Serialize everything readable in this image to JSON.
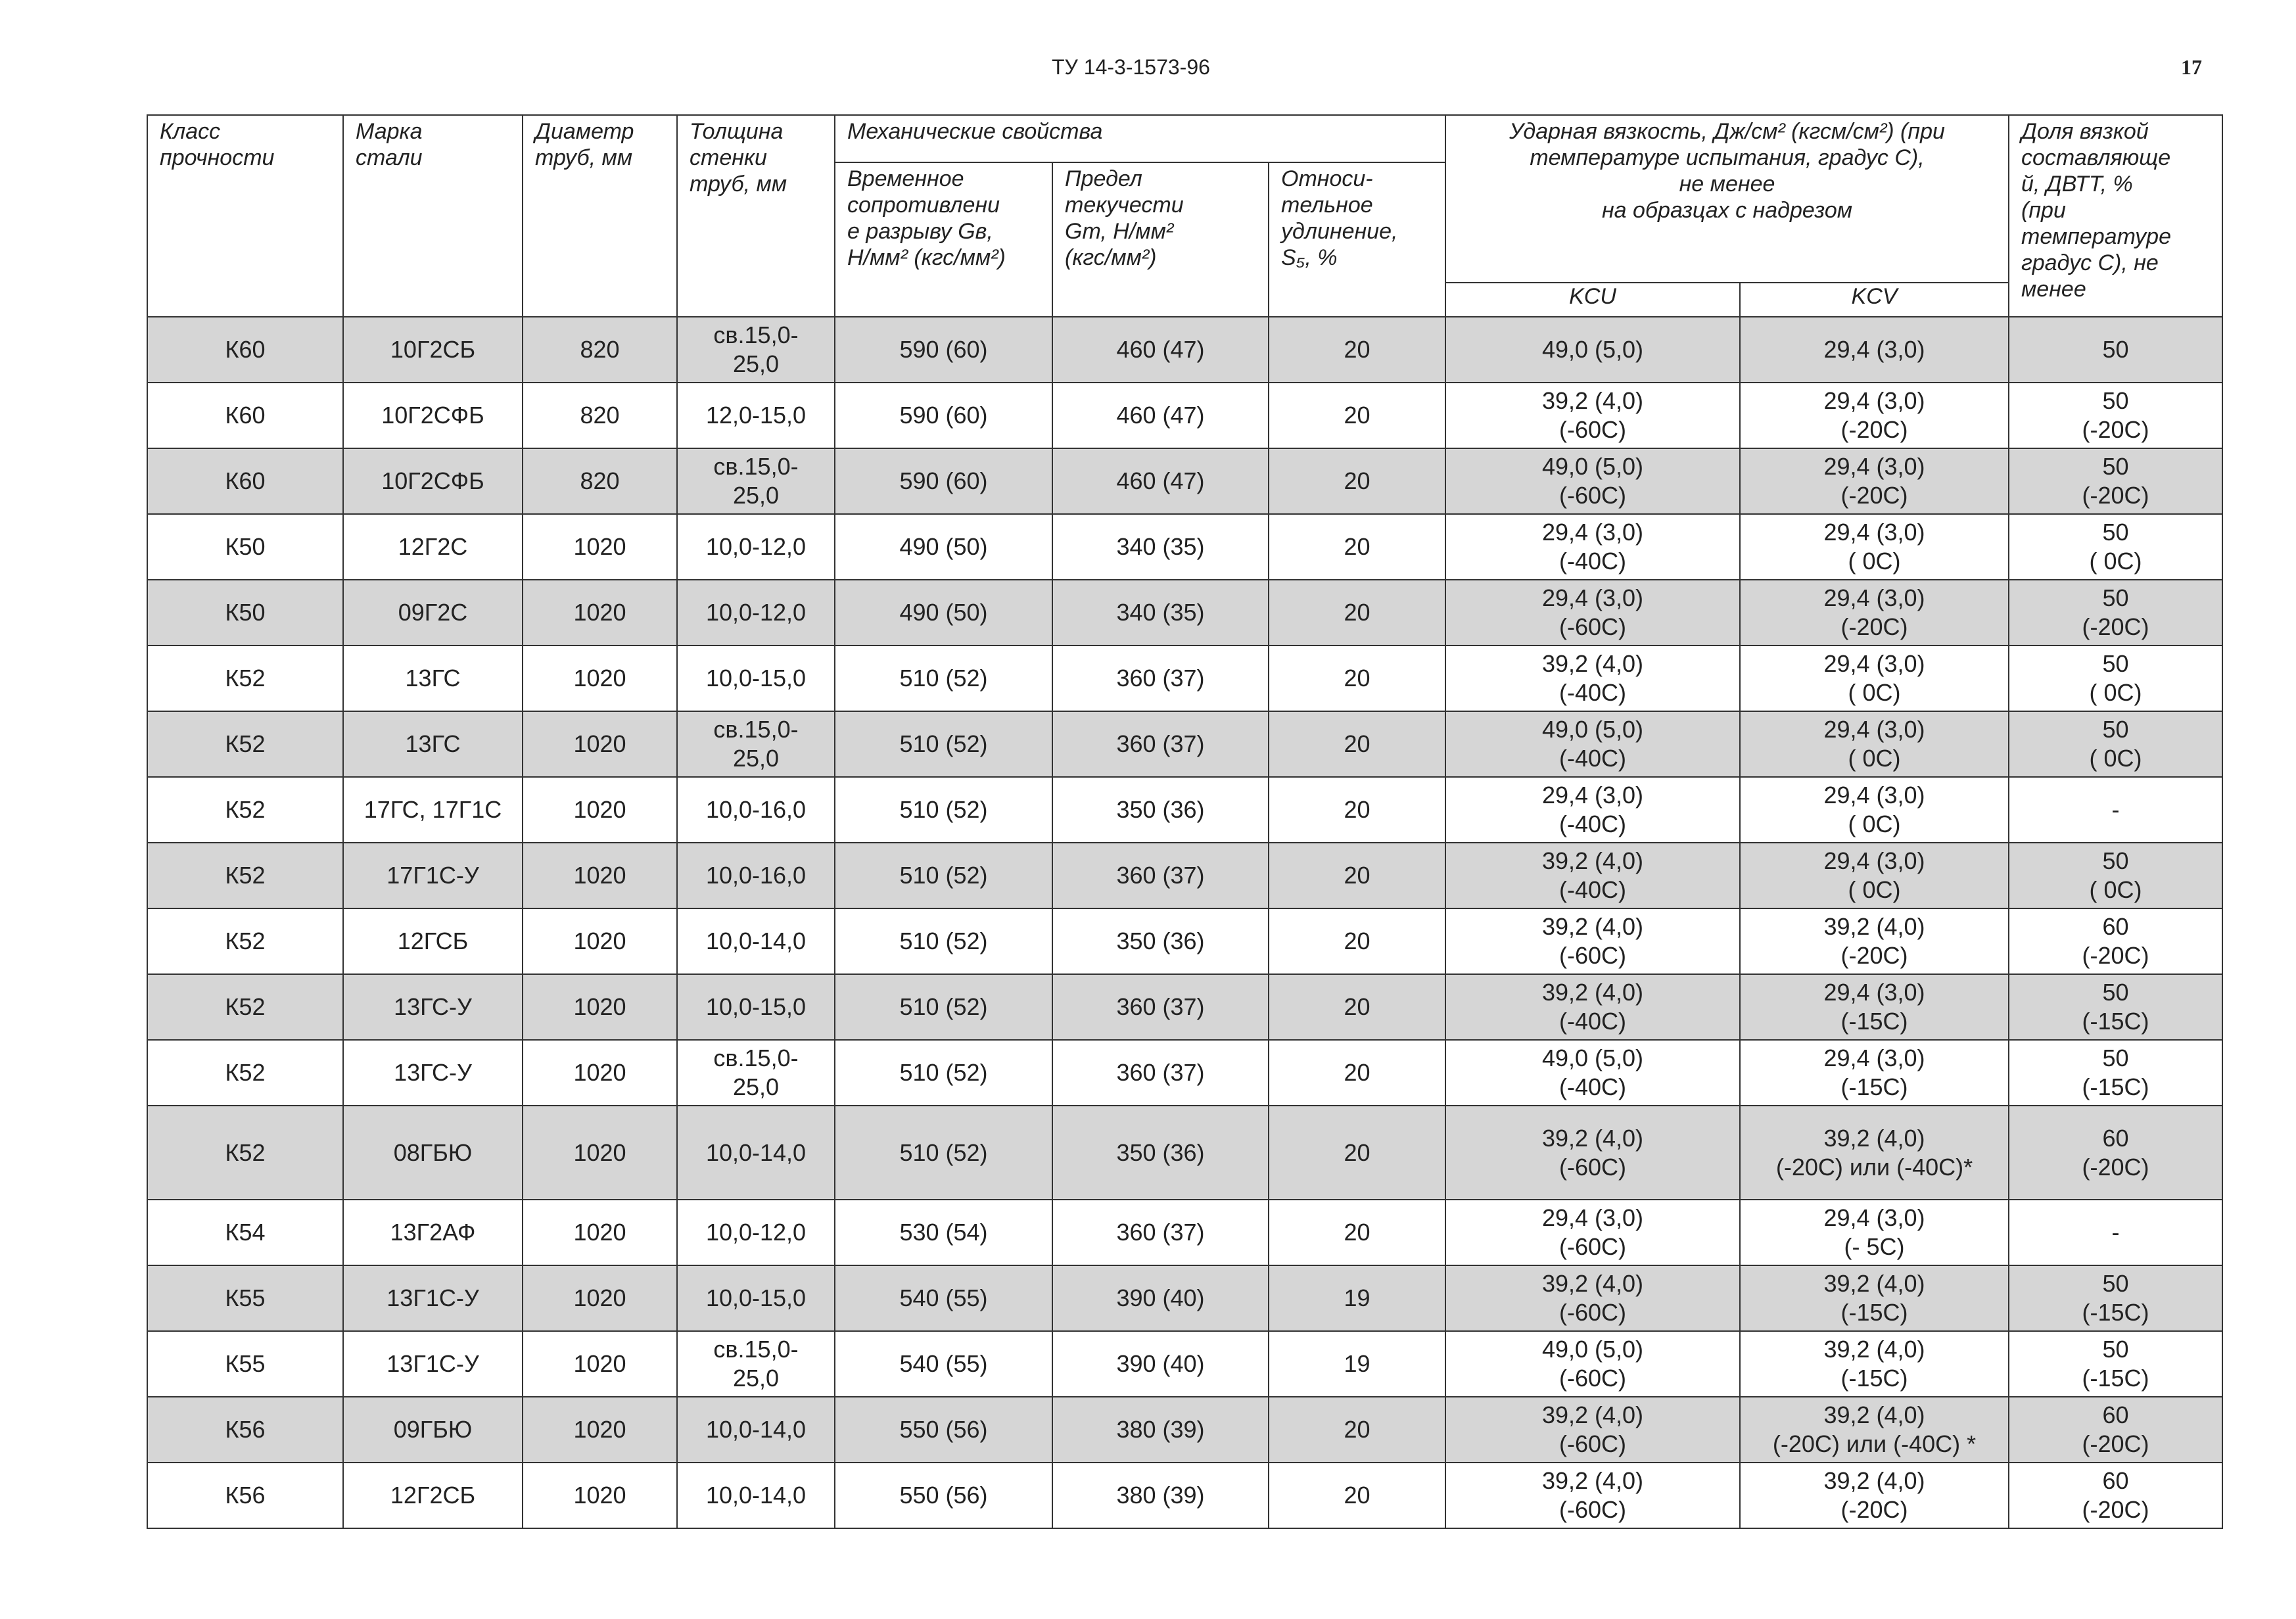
{
  "header": {
    "doc_code": "ТУ 14-3-1573-96",
    "page_number": "17"
  },
  "table": {
    "header_cells": [
      [
        "Класс",
        "прочности"
      ],
      [
        "Марка",
        "стали"
      ],
      [
        "Диаметр",
        "труб, мм"
      ],
      [
        "Толщина",
        "стенки",
        "труб, мм"
      ],
      [
        "Механические свойства"
      ],
      [
        "Временное",
        "сопротивлени",
        "е разрыву Gв,",
        "Н/мм² (кгс/мм²)"
      ],
      [
        "Предел",
        "текучести",
        "Gт, Н/мм²",
        "(кгс/мм²)"
      ],
      [
        "Относи-",
        "тельное",
        "удлинение,",
        "S₅, %"
      ],
      [
        "Ударная вязкость, Дж/см² (кгсм/см²) (при",
        "температуре испытания, градус С),",
        "не менее",
        "на образцах с надрезом"
      ],
      [
        "KCU"
      ],
      [
        "KCV"
      ],
      [
        "Доля вязкой",
        "составляюще",
        "й, ДВТТ, %",
        "(при",
        "температуре",
        "градус С), не",
        "менее"
      ]
    ],
    "rows": [
      [
        "К60",
        "10Г2СБ",
        "820",
        [
          "св.15,0-",
          "25,0"
        ],
        "590 (60)",
        "460 (47)",
        "20",
        "49,0 (5,0)",
        "29,4 (3,0)",
        "50"
      ],
      [
        "К60",
        "10Г2СФБ",
        "820",
        "12,0-15,0",
        "590 (60)",
        "460 (47)",
        "20",
        [
          "39,2 (4,0)",
          "(-60С)"
        ],
        [
          "29,4 (3,0)",
          "(-20С)"
        ],
        [
          "50",
          "(-20С)"
        ]
      ],
      [
        "К60",
        "10Г2СФБ",
        "820",
        [
          "св.15,0-",
          "25,0"
        ],
        "590 (60)",
        "460 (47)",
        "20",
        [
          "49,0 (5,0)",
          "(-60С)"
        ],
        [
          "29,4 (3,0)",
          "(-20С)"
        ],
        [
          "50",
          "(-20С)"
        ]
      ],
      [
        "К50",
        "12Г2С",
        "1020",
        "10,0-12,0",
        "490 (50)",
        "340 (35)",
        "20",
        [
          "29,4 (3,0)",
          "(-40С)"
        ],
        [
          "29,4 (3,0)",
          "( 0С)"
        ],
        [
          "50",
          "( 0С)"
        ]
      ],
      [
        "К50",
        "09Г2С",
        "1020",
        "10,0-12,0",
        "490 (50)",
        "340 (35)",
        "20",
        [
          "29,4 (3,0)",
          "(-60С)"
        ],
        [
          "29,4 (3,0)",
          "(-20С)"
        ],
        [
          "50",
          "(-20С)"
        ]
      ],
      [
        "К52",
        "13ГС",
        "1020",
        "10,0-15,0",
        "510 (52)",
        "360 (37)",
        "20",
        [
          "39,2 (4,0)",
          "(-40С)"
        ],
        [
          "29,4 (3,0)",
          "( 0С)"
        ],
        [
          "50",
          "( 0С)"
        ]
      ],
      [
        "К52",
        "13ГС",
        "1020",
        [
          "св.15,0-",
          "25,0"
        ],
        "510 (52)",
        "360 (37)",
        "20",
        [
          "49,0 (5,0)",
          "(-40С)"
        ],
        [
          "29,4 (3,0)",
          "( 0С)"
        ],
        [
          "50",
          "( 0С)"
        ]
      ],
      [
        "К52",
        "17ГС, 17Г1С",
        "1020",
        "10,0-16,0",
        "510 (52)",
        "350 (36)",
        "20",
        [
          "29,4 (3,0)",
          "(-40С)"
        ],
        [
          "29,4 (3,0)",
          "( 0С)"
        ],
        "-"
      ],
      [
        "К52",
        "17Г1С-У",
        "1020",
        "10,0-16,0",
        "510 (52)",
        "360 (37)",
        "20",
        [
          "39,2 (4,0)",
          "(-40С)"
        ],
        [
          "29,4 (3,0)",
          "( 0С)"
        ],
        [
          "50",
          "( 0С)"
        ]
      ],
      [
        "К52",
        "12ГСБ",
        "1020",
        "10,0-14,0",
        "510 (52)",
        "350 (36)",
        "20",
        [
          "39,2 (4,0)",
          "(-60С)"
        ],
        [
          "39,2 (4,0)",
          "(-20С)"
        ],
        [
          "60",
          "(-20С)"
        ]
      ],
      [
        "К52",
        "13ГС-У",
        "1020",
        "10,0-15,0",
        "510 (52)",
        "360 (37)",
        "20",
        [
          "39,2 (4,0)",
          "(-40С)"
        ],
        [
          "29,4 (3,0)",
          "(-15С)"
        ],
        [
          "50",
          "(-15С)"
        ]
      ],
      [
        "К52",
        "13ГС-У",
        "1020",
        [
          "св.15,0-",
          "25,0"
        ],
        "510 (52)",
        "360 (37)",
        "20",
        [
          "49,0 (5,0)",
          "(-40С)"
        ],
        [
          "29,4 (3,0)",
          "(-15С)"
        ],
        [
          "50",
          "(-15С)"
        ]
      ],
      [
        "К52",
        "08ГБЮ",
        "1020",
        "10,0-14,0",
        "510 (52)",
        "350 (36)",
        "20",
        [
          "39,2 (4,0)",
          "(-60С)"
        ],
        [
          "39,2 (4,0)",
          "(-20С) или (-40С)*"
        ],
        [
          "60",
          "(-20С)"
        ]
      ],
      [
        "К54",
        "13Г2АФ",
        "1020",
        "10,0-12,0",
        "530 (54)",
        "360 (37)",
        "20",
        [
          "29,4 (3,0)",
          "(-60С)"
        ],
        [
          "29,4 (3,0)",
          "(- 5С)"
        ],
        "-"
      ],
      [
        "К55",
        "13Г1С-У",
        "1020",
        "10,0-15,0",
        "540 (55)",
        "390 (40)",
        "19",
        [
          "39,2 (4,0)",
          "(-60С)"
        ],
        [
          "39,2 (4,0)",
          "(-15С)"
        ],
        [
          "50",
          "(-15С)"
        ]
      ],
      [
        "К55",
        "13Г1С-У",
        "1020",
        [
          "св.15,0-",
          "25,0"
        ],
        "540 (55)",
        "390 (40)",
        "19",
        [
          "49,0 (5,0)",
          "(-60С)"
        ],
        [
          "39,2 (4,0)",
          "(-15С)"
        ],
        [
          "50",
          "(-15С)"
        ]
      ],
      [
        "К56",
        "09ГБЮ",
        "1020",
        "10,0-14,0",
        "550 (56)",
        "380 (39)",
        "20",
        [
          "39,2 (4,0)",
          "(-60С)"
        ],
        [
          "39,2 (4,0)",
          "(-20С) или (-40С) *"
        ],
        [
          "60",
          "(-20С)"
        ]
      ],
      [
        "К56",
        "12Г2СБ",
        "1020",
        "10,0-14,0",
        "550 (56)",
        "380 (39)",
        "20",
        [
          "39,2 (4,0)",
          "(-60С)"
        ],
        [
          "39,2 (4,0)",
          "(-20С)"
        ],
        [
          "60",
          "(-20С)"
        ]
      ]
    ]
  }
}
